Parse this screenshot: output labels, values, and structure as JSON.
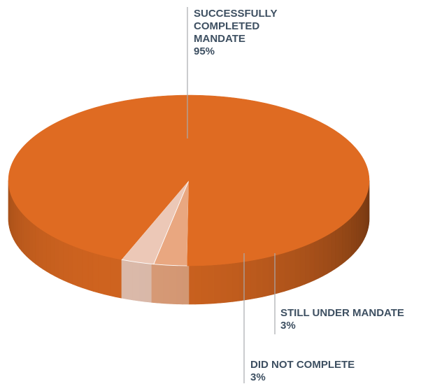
{
  "chart_data": {
    "type": "pie",
    "title": "",
    "three_d": true,
    "legend": "none",
    "slices": [
      {
        "label_lines": [
          "SUCCESSFULLY",
          "COMPLETED",
          "MANDATE"
        ],
        "value": 95,
        "value_label": "95%",
        "color": "#df6b22"
      },
      {
        "label_lines": [
          "STILL UNDER MANDATE"
        ],
        "value": 3,
        "value_label": "3%",
        "color": "#ecc8b7"
      },
      {
        "label_lines": [
          "DID NOT COMPLETE"
        ],
        "value": 3,
        "value_label": "3%",
        "color": "#e9a780"
      }
    ],
    "leader_line_color": "#a8abae"
  }
}
